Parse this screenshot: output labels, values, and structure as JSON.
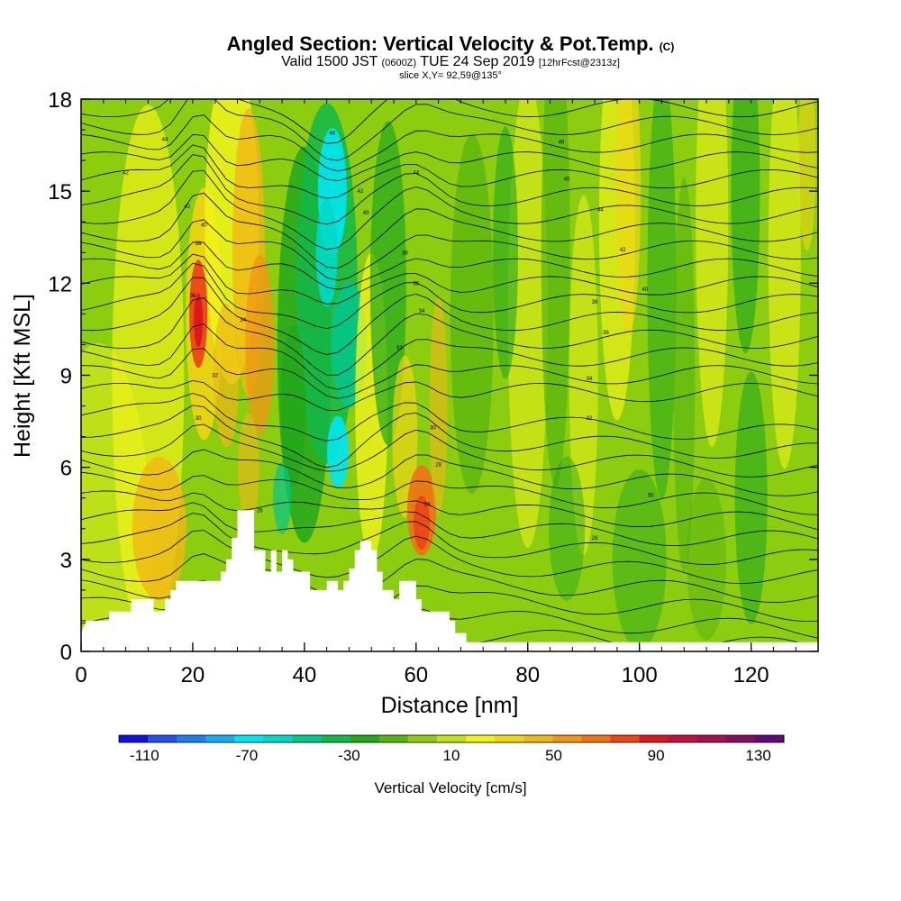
{
  "chart_data": {
    "type": "heatmap",
    "title_main": "Angled Section: Vertical Velocity & Pot.Temp.",
    "title_suffix": "(C)",
    "subtitle_main_a": "Valid 1500 JST",
    "subtitle_small_a": "(0600Z)",
    "subtitle_main_b": "TUE 24 Sep 2019",
    "subtitle_small_b": "[12hrFcst@2313z]",
    "subtitle2": "slice X,Y= 92,59@135°",
    "xlabel": "Distance [nm]",
    "ylabel": "Height [Kft MSL]",
    "xlim": [
      0,
      132
    ],
    "ylim": [
      0,
      18
    ],
    "xticks": [
      0,
      20,
      40,
      60,
      80,
      100,
      120
    ],
    "yticks": [
      0,
      3,
      6,
      9,
      12,
      15,
      18
    ],
    "colorbar_label": "Vertical Velocity [cm/s]",
    "colorbar_ticks": [
      -110,
      -70,
      -30,
      10,
      50,
      90,
      130
    ],
    "colorbar_colors": [
      "#1010e0",
      "#1f4fee",
      "#1e7ef0",
      "#14aef0",
      "#00e6f2",
      "#00d9c8",
      "#00c78c",
      "#10b94a",
      "#22a81c",
      "#55b410",
      "#8ccd10",
      "#c2e21a",
      "#f2f21a",
      "#f0d514",
      "#f0b814",
      "#f09614",
      "#f07214",
      "#eb4614",
      "#d8161c",
      "#c2123c",
      "#a31050",
      "#820e60",
      "#5e0a78"
    ],
    "contour_labels": [
      {
        "x": 15,
        "y": 16.7,
        "text": "44"
      },
      {
        "x": 8,
        "y": 15.6,
        "text": "42"
      },
      {
        "x": 19,
        "y": 14.5,
        "text": "42"
      },
      {
        "x": 22,
        "y": 13.9,
        "text": "40"
      },
      {
        "x": 21,
        "y": 13.3,
        "text": "38"
      },
      {
        "x": 20,
        "y": 11.6,
        "text": "36"
      },
      {
        "x": 29,
        "y": 10.8,
        "text": "34"
      },
      {
        "x": 24,
        "y": 9.0,
        "text": "32"
      },
      {
        "x": 21,
        "y": 7.6,
        "text": "30"
      },
      {
        "x": 45,
        "y": 16.9,
        "text": "46"
      },
      {
        "x": 60,
        "y": 15.6,
        "text": "44"
      },
      {
        "x": 50,
        "y": 15.0,
        "text": "42"
      },
      {
        "x": 51,
        "y": 14.3,
        "text": "40"
      },
      {
        "x": 58,
        "y": 13.0,
        "text": "38"
      },
      {
        "x": 60,
        "y": 12.0,
        "text": "36"
      },
      {
        "x": 61,
        "y": 11.1,
        "text": "34"
      },
      {
        "x": 57,
        "y": 9.9,
        "text": "32"
      },
      {
        "x": 63,
        "y": 7.3,
        "text": "30"
      },
      {
        "x": 64,
        "y": 6.1,
        "text": "28"
      },
      {
        "x": 62,
        "y": 4.8,
        "text": "26"
      },
      {
        "x": 32,
        "y": 4.6,
        "text": "26"
      },
      {
        "x": 86,
        "y": 16.6,
        "text": "46"
      },
      {
        "x": 87,
        "y": 15.4,
        "text": "45"
      },
      {
        "x": 93,
        "y": 14.4,
        "text": "44"
      },
      {
        "x": 97,
        "y": 13.1,
        "text": "42"
      },
      {
        "x": 101,
        "y": 11.8,
        "text": "40"
      },
      {
        "x": 92,
        "y": 11.4,
        "text": "38"
      },
      {
        "x": 94,
        "y": 10.4,
        "text": "36"
      },
      {
        "x": 91,
        "y": 8.9,
        "text": "34"
      },
      {
        "x": 91,
        "y": 7.6,
        "text": "32"
      },
      {
        "x": 102,
        "y": 5.1,
        "text": "30"
      },
      {
        "x": 92,
        "y": 3.7,
        "text": "28"
      }
    ],
    "terrain_profile": [
      [
        0,
        0.6
      ],
      [
        1,
        1.0
      ],
      [
        5,
        1.0
      ],
      [
        5,
        1.3
      ],
      [
        9,
        1.3
      ],
      [
        9,
        1.7
      ],
      [
        13,
        1.7
      ],
      [
        13,
        1.3
      ],
      [
        15,
        1.3
      ],
      [
        15,
        1.7
      ],
      [
        16,
        1.7
      ],
      [
        16,
        2.0
      ],
      [
        17,
        2.0
      ],
      [
        17,
        2.3
      ],
      [
        25,
        2.3
      ],
      [
        25,
        2.6
      ],
      [
        26,
        2.6
      ],
      [
        26,
        3.0
      ],
      [
        27,
        3.0
      ],
      [
        27,
        3.7
      ],
      [
        28,
        3.7
      ],
      [
        28,
        4.6
      ],
      [
        31,
        4.6
      ],
      [
        31,
        3.3
      ],
      [
        33,
        3.3
      ],
      [
        33,
        2.6
      ],
      [
        34,
        2.6
      ],
      [
        34,
        3.3
      ],
      [
        35,
        3.3
      ],
      [
        35,
        2.6
      ],
      [
        36,
        2.6
      ],
      [
        36,
        3.3
      ],
      [
        37,
        3.3
      ],
      [
        37,
        3.0
      ],
      [
        38,
        3.0
      ],
      [
        38,
        2.6
      ],
      [
        41,
        2.6
      ],
      [
        41,
        2.0
      ],
      [
        44,
        2.0
      ],
      [
        44,
        2.3
      ],
      [
        46,
        2.3
      ],
      [
        46,
        2.0
      ],
      [
        47,
        2.0
      ],
      [
        47,
        2.3
      ],
      [
        48,
        2.3
      ],
      [
        48,
        2.7
      ],
      [
        49,
        2.7
      ],
      [
        49,
        3.3
      ],
      [
        50,
        3.3
      ],
      [
        50,
        3.6
      ],
      [
        52,
        3.6
      ],
      [
        52,
        3.3
      ],
      [
        53,
        3.3
      ],
      [
        53,
        2.6
      ],
      [
        54,
        2.6
      ],
      [
        54,
        2.0
      ],
      [
        56,
        2.0
      ],
      [
        56,
        1.7
      ],
      [
        57,
        1.7
      ],
      [
        57,
        2.3
      ],
      [
        60,
        2.3
      ],
      [
        60,
        1.7
      ],
      [
        61,
        1.7
      ],
      [
        61,
        1.3
      ],
      [
        66,
        1.3
      ],
      [
        66,
        1.0
      ],
      [
        67,
        1.0
      ],
      [
        67,
        0.6
      ],
      [
        69,
        0.6
      ],
      [
        69,
        0.3
      ],
      [
        132,
        0.3
      ],
      [
        132,
        0
      ]
    ]
  }
}
